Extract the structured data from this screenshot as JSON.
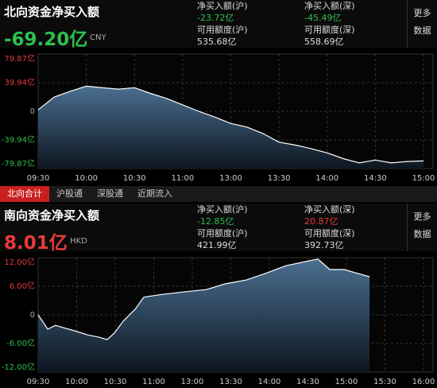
{
  "north": {
    "title": "北向资金净买入额",
    "total": "-69.20亿",
    "currency": "CNY",
    "cols": [
      {
        "label1": "净买入额(沪)",
        "value1": "-23.72亿",
        "label2": "可用额度(沪)",
        "value2": "535.68亿"
      },
      {
        "label1": "净买入额(深)",
        "value1": "-45.49亿",
        "label2": "可用额度(深)",
        "value2": "558.69亿"
      }
    ],
    "more": [
      "更多",
      "数据"
    ]
  },
  "tabs": [
    "北向合计",
    "沪股通",
    "深股通",
    "近期流入"
  ],
  "south": {
    "title": "南向资金净买入额",
    "total": "8.01亿",
    "currency": "HKD",
    "cols": [
      {
        "label1": "净买入额(沪)",
        "value1": "-12.85亿",
        "label2": "可用额度(沪)",
        "value2": "421.99亿"
      },
      {
        "label1": "净买入额(深)",
        "value1": "20.87亿",
        "label2": "可用额度(深)",
        "value2": "392.73亿"
      }
    ],
    "more": [
      "更多",
      "数据"
    ]
  },
  "chart_data": [
    {
      "type": "area",
      "x": [
        0,
        10,
        20,
        30,
        40,
        50,
        60,
        70,
        80,
        90,
        100,
        110,
        120,
        130,
        140,
        150,
        160,
        170,
        180,
        190,
        200,
        210,
        220,
        230,
        240
      ],
      "values": [
        2,
        20,
        28,
        35,
        33,
        31,
        33,
        25,
        18,
        9,
        0,
        -8,
        -17,
        -22,
        -31,
        -43,
        -47,
        -52,
        -58,
        -66,
        -72,
        -68,
        -72,
        -70,
        -69.2
      ],
      "xlim": [
        0,
        240
      ],
      "ylim": [
        -79.87,
        79.87
      ],
      "xticks": [
        {
          "value": 0,
          "label": "09:30"
        },
        {
          "value": 30,
          "label": "10:00"
        },
        {
          "value": 60,
          "label": "10:30"
        },
        {
          "value": 90,
          "label": "11:00"
        },
        {
          "value": 120,
          "label": "13:00"
        },
        {
          "value": 150,
          "label": "13:30"
        },
        {
          "value": 180,
          "label": "14:00"
        },
        {
          "value": 210,
          "label": "14:30"
        },
        {
          "value": 240,
          "label": "15:00"
        }
      ],
      "yticks": [
        {
          "value": 79.87,
          "label": "79.87亿"
        },
        {
          "value": 39.94,
          "label": "39.94亿"
        },
        0,
        {
          "value": -39.94,
          "label": "-39.94亿"
        },
        {
          "value": -79.87,
          "label": "-79.87亿"
        }
      ],
      "grid": true,
      "color": "#ffffff",
      "up_color": "#e83a3a",
      "down_color": "#2fbf4f"
    },
    {
      "type": "area",
      "x": [
        0,
        0.25,
        0.45,
        0.66,
        1.01,
        1.28,
        1.59,
        1.79,
        1.98,
        2.21,
        2.52,
        2.74,
        3.13,
        3.77,
        4.37,
        4.85,
        5.4,
        5.9,
        6.43,
        6.95,
        7.26,
        7.57,
        7.94,
        8.29,
        8.6
      ],
      "values": [
        0,
        -3,
        -2.2,
        -2.7,
        -3.5,
        -4.2,
        -4.7,
        -5.2,
        -3.8,
        -1.3,
        1.2,
        3.7,
        4.2,
        4.8,
        5.3,
        6.5,
        7.3,
        8.7,
        10.3,
        11.2,
        11.7,
        9.5,
        9.5,
        8.7,
        8.0
      ],
      "xlim": [
        0,
        10
      ],
      "ylim": [
        -12,
        12
      ],
      "xticks": [
        {
          "value": 0,
          "label": "09:30"
        },
        {
          "value": 1,
          "label": "10:00"
        },
        {
          "value": 2,
          "label": "10:30"
        },
        {
          "value": 3,
          "label": "11:00"
        },
        {
          "value": 4,
          "label": "13:00"
        },
        {
          "value": 5,
          "label": "13:30"
        },
        {
          "value": 6,
          "label": "14:00"
        },
        {
          "value": 7,
          "label": "14:30"
        },
        {
          "value": 8,
          "label": "15:00"
        },
        {
          "value": 9,
          "label": "15:30"
        },
        {
          "value": 10,
          "label": "16:00"
        }
      ],
      "yticks": [
        {
          "value": 12,
          "label": "12.00亿"
        },
        {
          "value": 6,
          "label": "6.00亿"
        },
        0,
        {
          "value": -6,
          "label": "-6.00亿"
        },
        {
          "value": -12,
          "label": "-12.00亿"
        }
      ],
      "grid": true,
      "color": "#ffffff",
      "up_color": "#e83a3a",
      "down_color": "#2fbf4f"
    }
  ]
}
